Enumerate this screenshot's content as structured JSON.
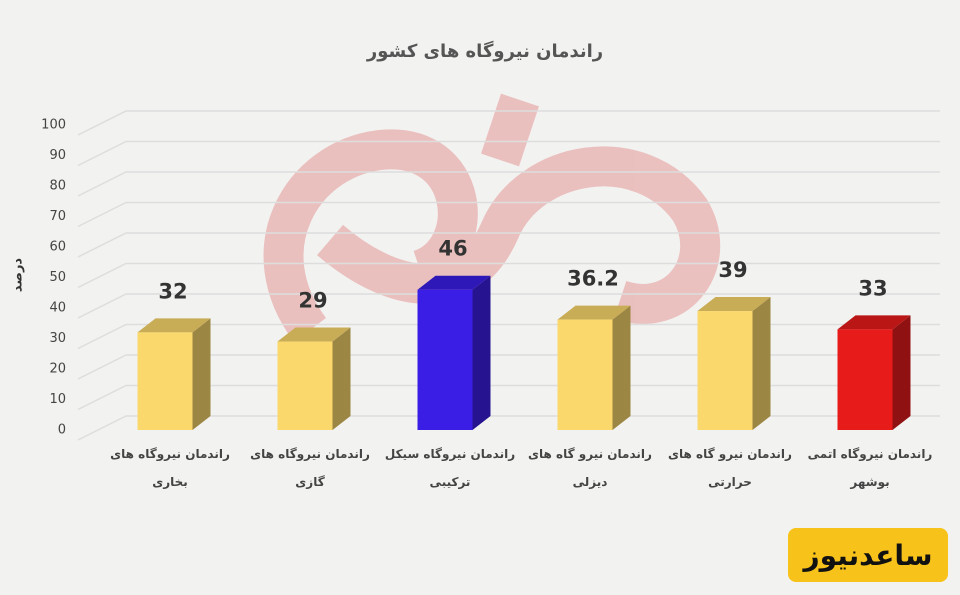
{
  "chart_data": {
    "type": "bar3d",
    "title": "راندمان نیروگاه های کشور",
    "y_label": "درصد",
    "categories": [
      "راندمان نیروگاه های\nبخاری",
      "راندمان نیروگاه های\nگازی",
      "راندمان نیروگاه سیکل\nترکیبی",
      "راندمان نیرو گاه های\nدیزلی",
      "راندمان نیرو گاه های\nحرارتی",
      "راندمان نیروگاه اتمی\nبوشهر"
    ],
    "values": [
      32,
      29,
      46,
      36.2,
      39,
      33
    ],
    "colors": [
      "#fbd86c",
      "#fbd86c",
      "#3b1ee6",
      "#fbd86c",
      "#fbd86c",
      "#e81b1b"
    ],
    "ylim": [
      0,
      100
    ],
    "yticks": [
      0,
      10,
      20,
      30,
      40,
      50,
      60,
      70,
      80,
      90,
      100
    ],
    "grid": true
  },
  "badge": "ساعدنیوز"
}
